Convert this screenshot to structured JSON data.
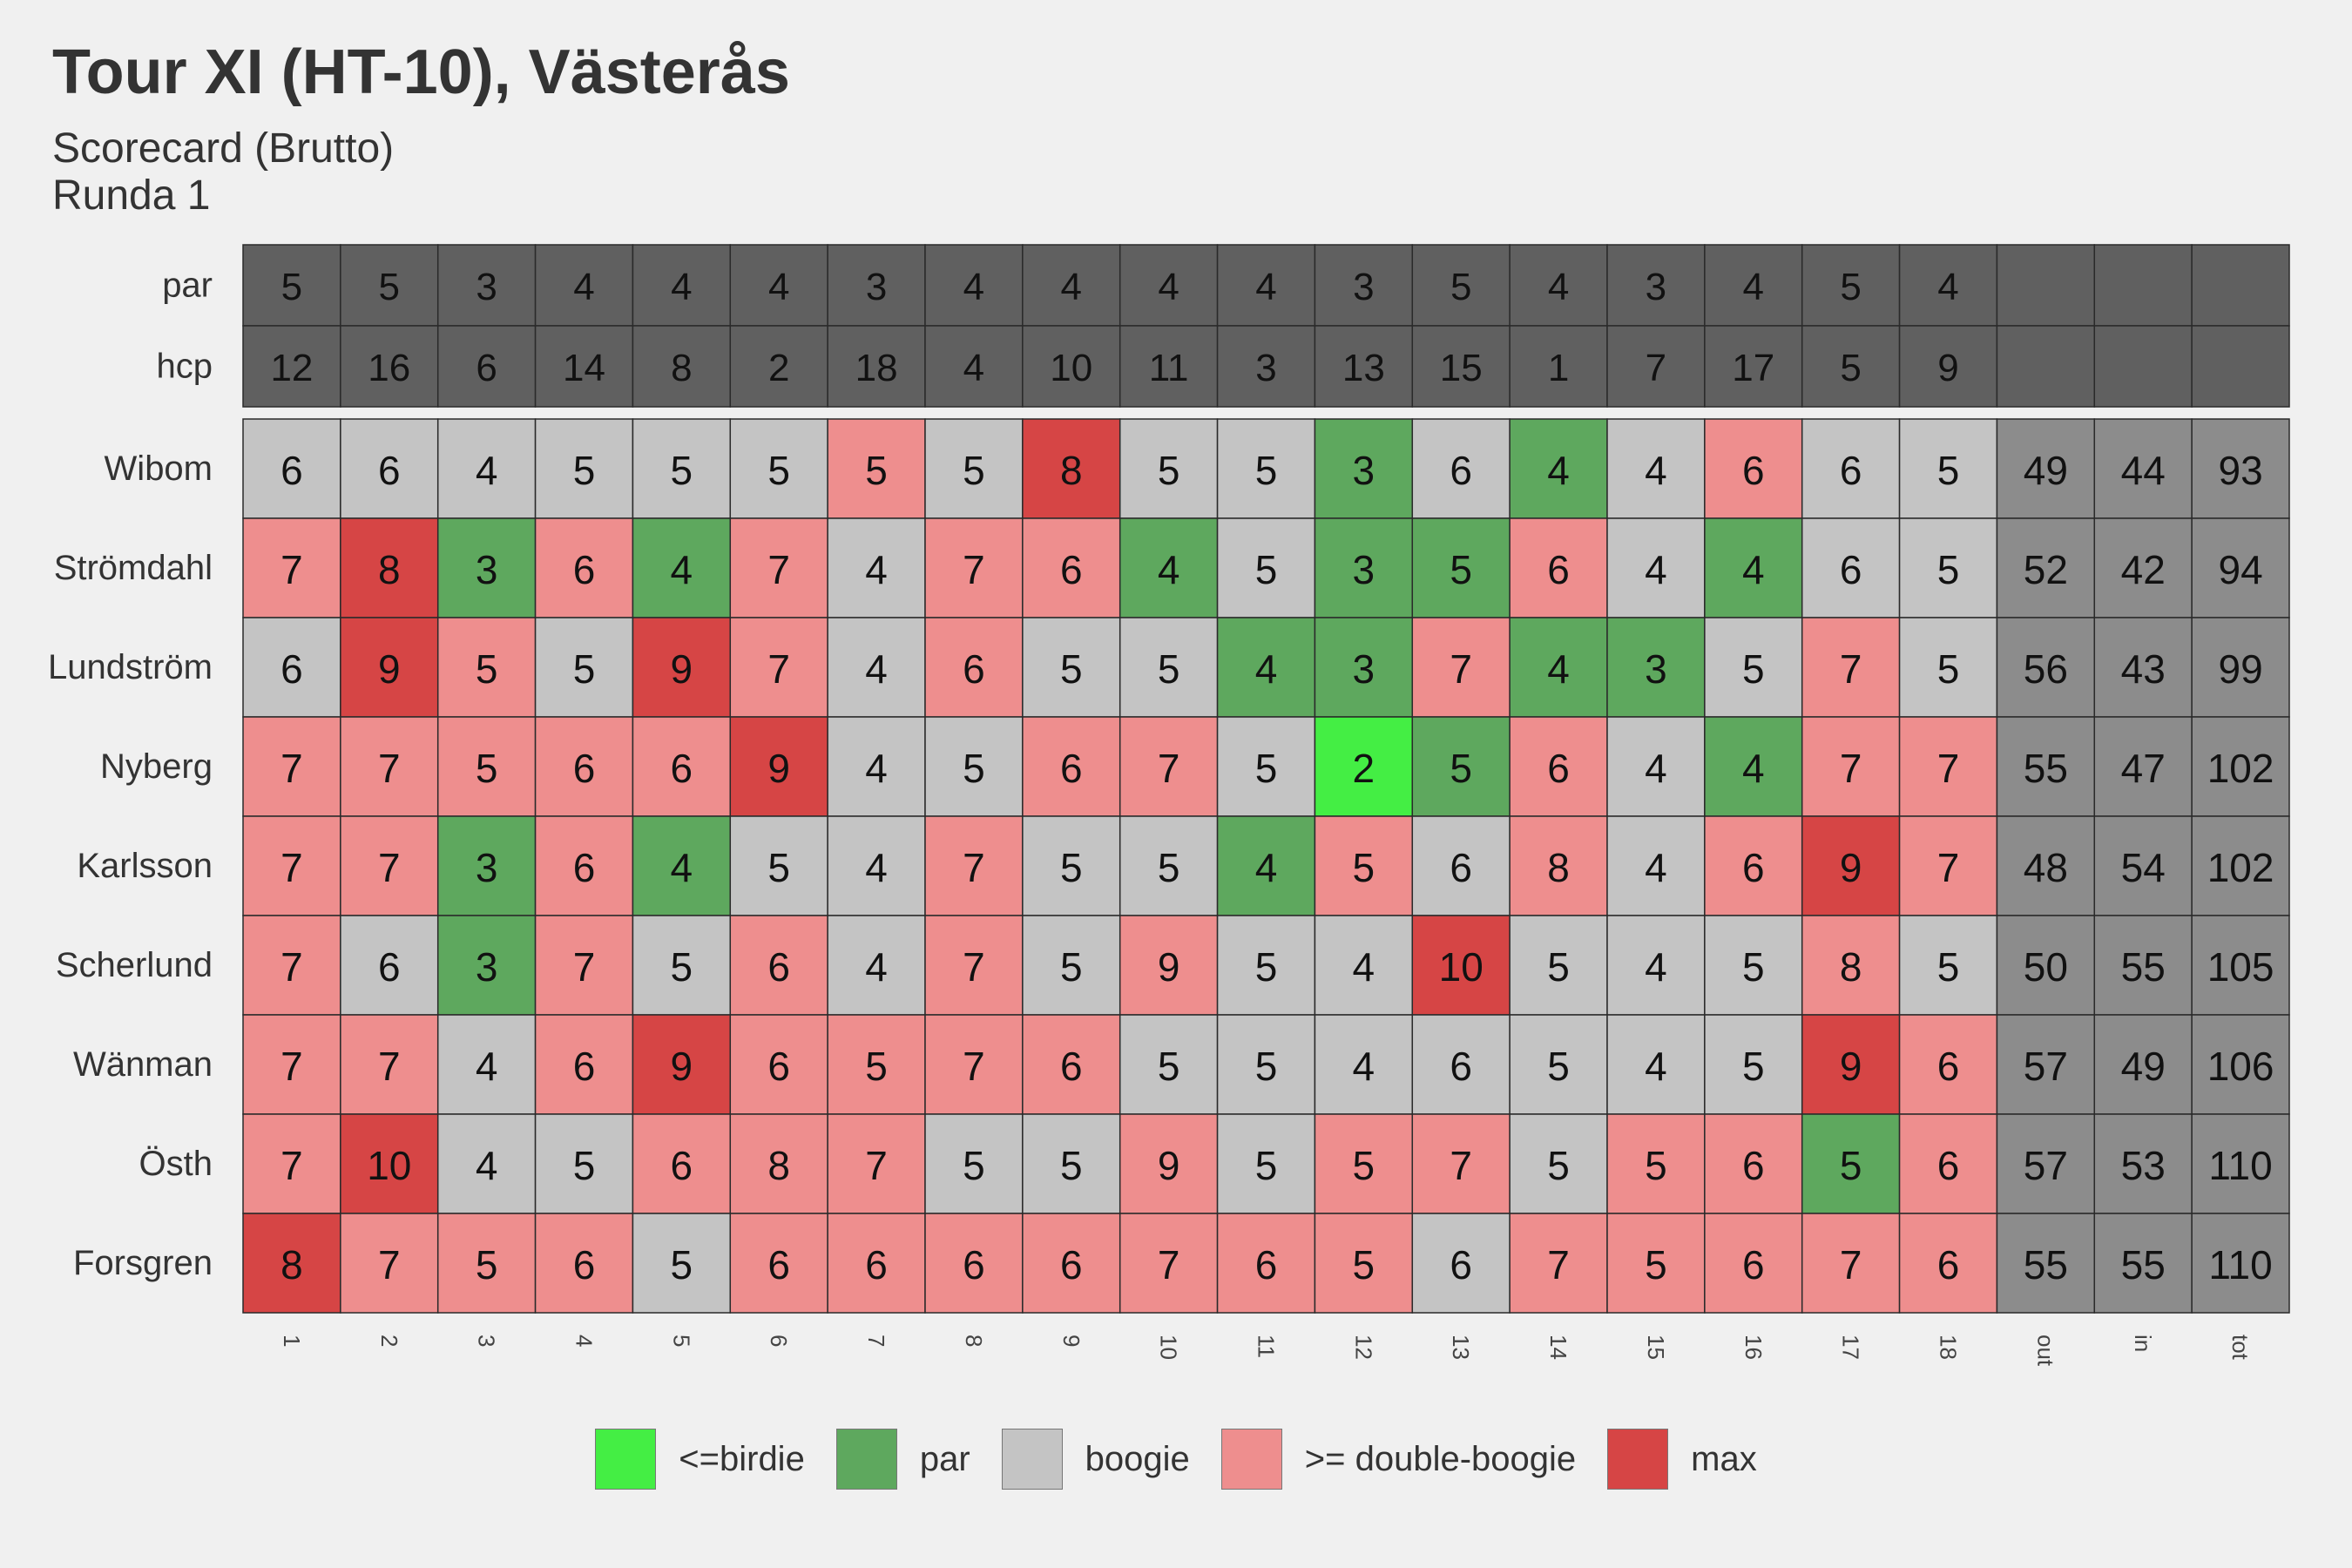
{
  "chart_data": {
    "type": "heatmap",
    "title": "Tour XI (HT-10), Västerås",
    "subtitle": "Scorecard (Brutto)\nRunda 1",
    "columns": [
      "1",
      "2",
      "3",
      "4",
      "5",
      "6",
      "7",
      "8",
      "9",
      "10",
      "11",
      "12",
      "13",
      "14",
      "15",
      "16",
      "17",
      "18",
      "out",
      "in",
      "tot"
    ],
    "header_rows": [
      {
        "label": "par",
        "values": [
          5,
          5,
          3,
          4,
          4,
          4,
          3,
          4,
          4,
          4,
          4,
          3,
          5,
          4,
          3,
          4,
          5,
          4
        ]
      },
      {
        "label": "hcp",
        "values": [
          12,
          16,
          6,
          14,
          8,
          2,
          18,
          4,
          10,
          11,
          3,
          13,
          15,
          1,
          7,
          17,
          5,
          9
        ]
      }
    ],
    "players": [
      {
        "name": "Wibom",
        "scores": [
          6,
          6,
          4,
          5,
          5,
          5,
          5,
          5,
          8,
          5,
          5,
          3,
          6,
          4,
          4,
          6,
          6,
          5
        ],
        "out": 49,
        "in": 44,
        "tot": 93
      },
      {
        "name": "Strömdahl",
        "scores": [
          7,
          8,
          3,
          6,
          4,
          7,
          4,
          7,
          6,
          4,
          5,
          3,
          5,
          6,
          4,
          4,
          6,
          5
        ],
        "out": 52,
        "in": 42,
        "tot": 94
      },
      {
        "name": "Lundström",
        "scores": [
          6,
          9,
          5,
          5,
          9,
          7,
          4,
          6,
          5,
          5,
          4,
          3,
          7,
          4,
          3,
          5,
          7,
          5
        ],
        "out": 56,
        "in": 43,
        "tot": 99
      },
      {
        "name": "Nyberg",
        "scores": [
          7,
          7,
          5,
          6,
          6,
          9,
          4,
          5,
          6,
          7,
          5,
          2,
          5,
          6,
          4,
          4,
          7,
          7
        ],
        "out": 55,
        "in": 47,
        "tot": 102
      },
      {
        "name": "Karlsson",
        "scores": [
          7,
          7,
          3,
          6,
          4,
          5,
          4,
          7,
          5,
          5,
          4,
          5,
          6,
          8,
          4,
          6,
          9,
          7
        ],
        "out": 48,
        "in": 54,
        "tot": 102
      },
      {
        "name": "Scherlund",
        "scores": [
          7,
          6,
          3,
          7,
          5,
          6,
          4,
          7,
          5,
          9,
          5,
          4,
          10,
          5,
          4,
          5,
          8,
          5
        ],
        "out": 50,
        "in": 55,
        "tot": 105
      },
      {
        "name": "Wänman",
        "scores": [
          7,
          7,
          4,
          6,
          9,
          6,
          5,
          7,
          6,
          5,
          5,
          4,
          6,
          5,
          4,
          5,
          9,
          6
        ],
        "out": 57,
        "in": 49,
        "tot": 106
      },
      {
        "name": "Östh",
        "scores": [
          7,
          10,
          4,
          5,
          6,
          8,
          7,
          5,
          5,
          9,
          5,
          5,
          7,
          5,
          5,
          6,
          5,
          6
        ],
        "out": 57,
        "in": 53,
        "tot": 110
      },
      {
        "name": "Forsgren",
        "scores": [
          8,
          7,
          5,
          6,
          5,
          6,
          6,
          6,
          6,
          7,
          6,
          5,
          6,
          7,
          5,
          6,
          7,
          6
        ],
        "out": 55,
        "in": 55,
        "tot": 110
      }
    ],
    "categories": {
      "birdie": "<=birdie",
      "par": "par",
      "bogey": "boogie",
      "double": ">= double-boogie",
      "max": "max"
    },
    "colors": {
      "birdie": "#44ee44",
      "par": "#5ea85e",
      "bogey": "#c4c4c4",
      "double": "#ee8e8e",
      "max": "#d64545",
      "header_bg": "#606060",
      "totals_bg": "#8c8c8c"
    },
    "legend_position": "bottom"
  }
}
